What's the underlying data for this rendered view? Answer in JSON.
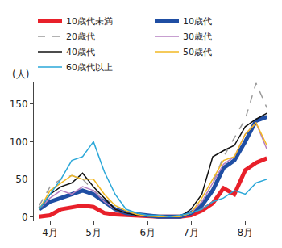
{
  "chart_data": {
    "type": "line",
    "y_label": "(人)",
    "categories": [
      null,
      "4月",
      null,
      null,
      null,
      "5月",
      null,
      null,
      null,
      null,
      "6月",
      null,
      null,
      null,
      "7月",
      null,
      null,
      null,
      null,
      "8月",
      null,
      null
    ],
    "series": [
      {
        "name": "10歳代未満",
        "color": "#e8202a",
        "line_style": "solid",
        "values": [
          0,
          2,
          10,
          12,
          15,
          13,
          5,
          3,
          2,
          1,
          0,
          0,
          0,
          0,
          2,
          8,
          18,
          38,
          30,
          62,
          72,
          78
        ]
      },
      {
        "name": "10歳代",
        "color": "#1f4ea3",
        "line_style": "solid",
        "values": [
          10,
          20,
          25,
          30,
          35,
          30,
          20,
          10,
          5,
          3,
          1,
          0,
          0,
          0,
          5,
          15,
          35,
          65,
          75,
          100,
          128,
          133
        ]
      },
      {
        "name": "20歳代",
        "color": "#999999",
        "line_style": "dash",
        "values": [
          15,
          40,
          50,
          55,
          50,
          35,
          25,
          15,
          8,
          3,
          1,
          0,
          0,
          0,
          5,
          20,
          45,
          80,
          105,
          130,
          178,
          145
        ]
      },
      {
        "name": "30歳代",
        "color": "#b57fc0",
        "line_style": "solid",
        "values": [
          10,
          25,
          35,
          30,
          40,
          35,
          20,
          10,
          5,
          2,
          1,
          0,
          0,
          0,
          5,
          20,
          45,
          70,
          80,
          110,
          125,
          90
        ]
      },
      {
        "name": "40歳代",
        "color": "#111111",
        "line_style": "solid",
        "values": [
          10,
          30,
          40,
          45,
          58,
          40,
          25,
          10,
          5,
          2,
          1,
          0,
          0,
          0,
          10,
          30,
          80,
          88,
          95,
          120,
          130,
          138
        ]
      },
      {
        "name": "50歳代",
        "color": "#f2b823",
        "line_style": "solid",
        "values": [
          10,
          35,
          45,
          55,
          50,
          50,
          30,
          15,
          8,
          3,
          1,
          0,
          0,
          0,
          5,
          25,
          50,
          75,
          80,
          110,
          125,
          95
        ]
      },
      {
        "name": "60歳代以上",
        "color": "#2aa7d8",
        "line_style": "solid",
        "values": [
          10,
          30,
          50,
          75,
          80,
          100,
          60,
          30,
          10,
          5,
          2,
          2,
          0,
          2,
          5,
          10,
          20,
          25,
          35,
          30,
          45,
          50
        ]
      }
    ],
    "ylim": [
      -5,
      180
    ],
    "yticks": [
      0,
      50,
      100,
      150
    ],
    "grid": false,
    "legend": "top"
  }
}
